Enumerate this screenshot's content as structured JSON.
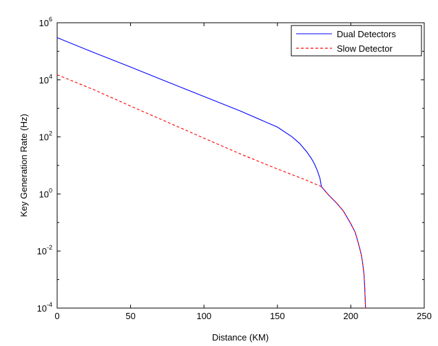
{
  "chart_data": {
    "type": "line",
    "title": "",
    "xlabel": "Distance (KM)",
    "ylabel": "Key Generation Rate (Hz)",
    "xlim": [
      0,
      250
    ],
    "ylim": [
      0.0001,
      1000000
    ],
    "y_scale": "log",
    "grid": false,
    "legend_position": "top-right",
    "x_ticks": [
      "0",
      "50",
      "100",
      "150",
      "200",
      "250"
    ],
    "y_ticks": [
      {
        "base": "10",
        "exp": "6",
        "value": 1000000
      },
      {
        "base": "10",
        "exp": "4",
        "value": 10000
      },
      {
        "base": "10",
        "exp": "2",
        "value": 100
      },
      {
        "base": "10",
        "exp": "0",
        "value": 1
      },
      {
        "base": "10",
        "exp": "-2",
        "value": 0.01
      },
      {
        "base": "10",
        "exp": "-4",
        "value": 0.0001
      }
    ],
    "series": [
      {
        "name": "Dual Detectors",
        "color": "#0000ff",
        "dash": "solid",
        "x": [
          0,
          25,
          50,
          75,
          100,
          125,
          150,
          160,
          165,
          170,
          173,
          175,
          177,
          178,
          179,
          180,
          185,
          190,
          195,
          200,
          203,
          205,
          207,
          208,
          209,
          209.5,
          210,
          210.1
        ],
        "y": [
          300000,
          90000,
          28000,
          8500,
          2600,
          800,
          220,
          100,
          60,
          30,
          18,
          12,
          7,
          5,
          3.5,
          1.8,
          0.9,
          0.5,
          0.25,
          0.09,
          0.045,
          0.02,
          0.008,
          0.004,
          0.0015,
          0.0005,
          0.0001,
          0.0001
        ]
      },
      {
        "name": "Slow Detector",
        "color": "#ff0000",
        "dash": "dashed",
        "x": [
          0,
          25,
          50,
          75,
          100,
          125,
          150,
          170,
          180,
          185,
          190,
          195,
          200,
          203,
          205,
          207,
          208,
          209,
          209.5,
          210,
          210.1
        ],
        "y": [
          15000,
          4500,
          1200,
          330,
          90,
          25,
          7.5,
          3,
          1.8,
          0.9,
          0.5,
          0.25,
          0.09,
          0.045,
          0.02,
          0.008,
          0.004,
          0.0015,
          0.0005,
          0.0001,
          0.0001
        ]
      }
    ]
  }
}
